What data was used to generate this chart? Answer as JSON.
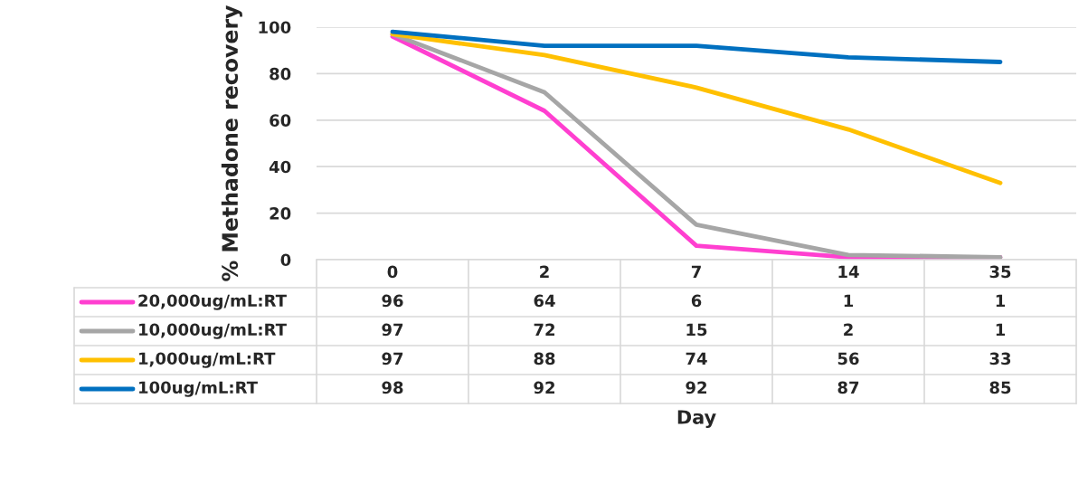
{
  "chart_data": {
    "type": "line",
    "ylabel": "% Methadone recovery",
    "annotations": [
      "Day"
    ],
    "categories": [
      "0",
      "2",
      "7",
      "14",
      "35"
    ],
    "ylim": [
      0,
      100
    ],
    "yticks": [
      0,
      20,
      40,
      60,
      80,
      100
    ],
    "grid": "y",
    "legend": "bottom",
    "data_labels": true,
    "marker": "none",
    "line_style": "solid",
    "series": [
      {
        "name": "20,000ug/mL:RT",
        "color": "#ff3fd0",
        "values": [
          96,
          64,
          6,
          1,
          1
        ]
      },
      {
        "name": "10,000ug/mL:RT",
        "color": "#a6a6a6",
        "values": [
          97,
          72,
          15,
          2,
          1
        ]
      },
      {
        "name": "1,000ug/mL:RT",
        "color": "#ffc000",
        "values": [
          97,
          88,
          74,
          56,
          33
        ]
      },
      {
        "name": "100ug/mL:RT",
        "color": "#0070c0",
        "values": [
          98,
          92,
          92,
          87,
          85
        ]
      }
    ]
  }
}
